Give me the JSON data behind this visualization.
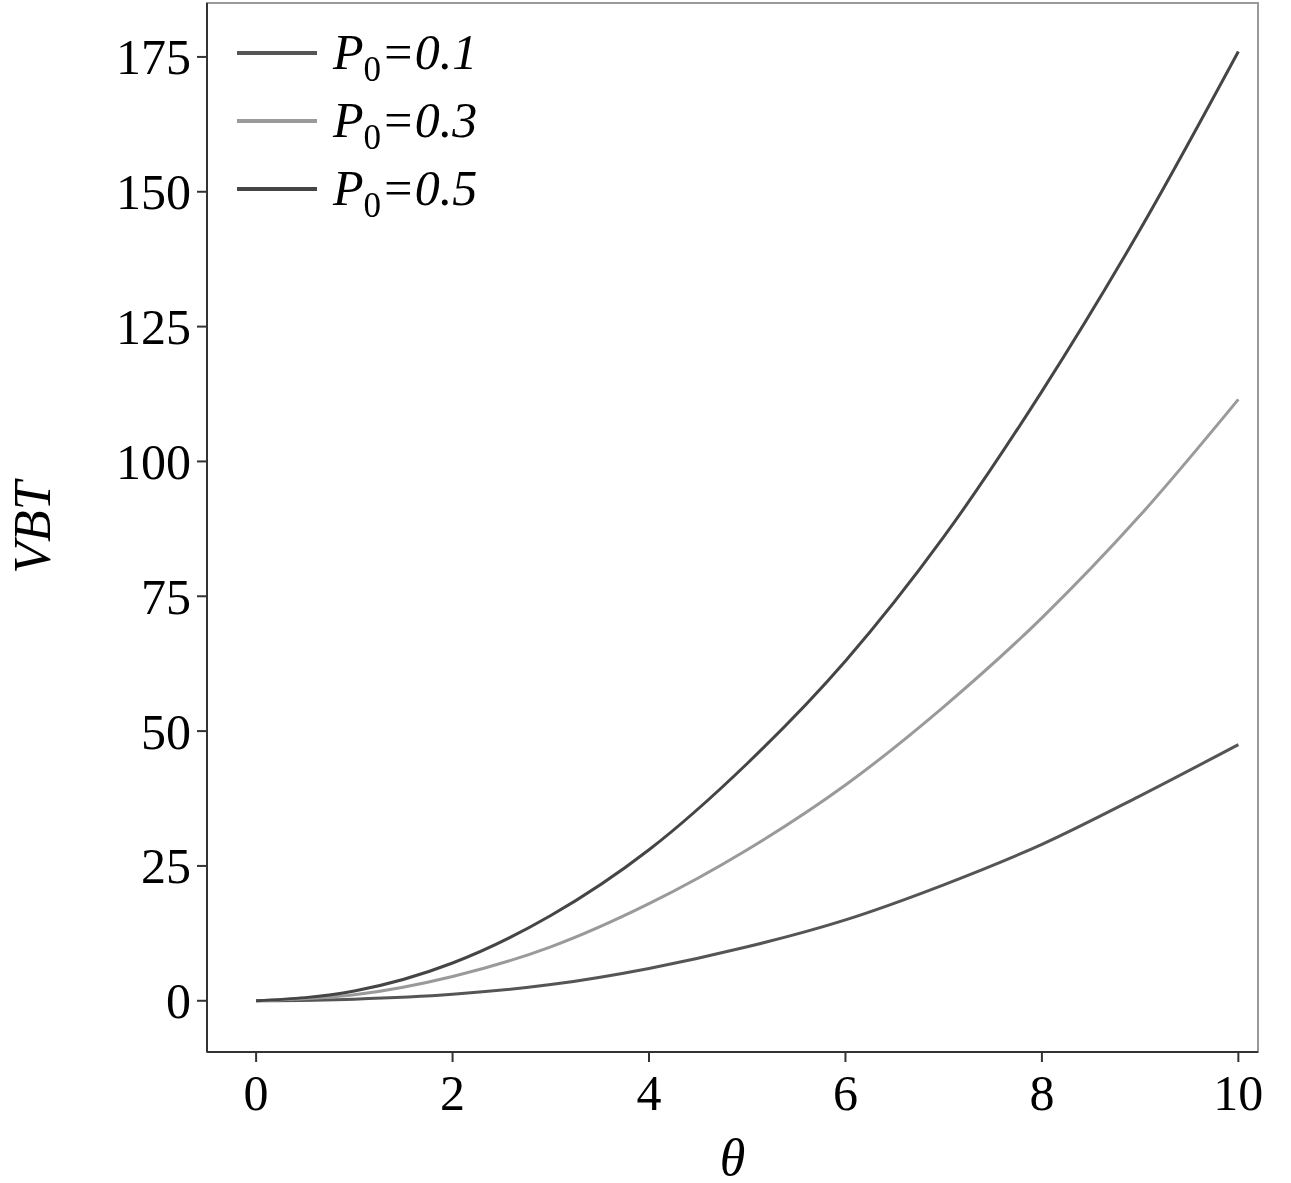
{
  "chart_data": {
    "type": "line",
    "xlabel": "θ",
    "ylabel": "VBT",
    "x": [
      0,
      1,
      2,
      3,
      4,
      5,
      6,
      7,
      8,
      9,
      10
    ],
    "series": [
      {
        "name": "P$_{0}$=0.1",
        "color": "#555555",
        "values": [
          0,
          0.3,
          1.2,
          3,
          6,
          10,
          15,
          21.5,
          29,
          38,
          47.5
        ]
      },
      {
        "name": "P$_{0}$=0.3",
        "color": "#9a9a9a",
        "values": [
          0,
          1.1,
          4.5,
          10,
          18,
          28,
          40,
          54.5,
          71,
          90,
          111.5
        ]
      },
      {
        "name": "P$_{0}$=0.5",
        "color": "#454545",
        "values": [
          0,
          1.8,
          7,
          15.8,
          28,
          44,
          63,
          86,
          113,
          143,
          176
        ]
      }
    ],
    "xlim": [
      -0.5,
      10.2
    ],
    "ylim": [
      -9.5,
      185
    ],
    "xticks": [
      0,
      2,
      4,
      6,
      8,
      10
    ],
    "yticks": [
      0,
      25,
      50,
      75,
      100,
      125,
      150,
      175
    ],
    "grid": false,
    "legend": "top left",
    "marker": "none",
    "line_style": "solid"
  }
}
